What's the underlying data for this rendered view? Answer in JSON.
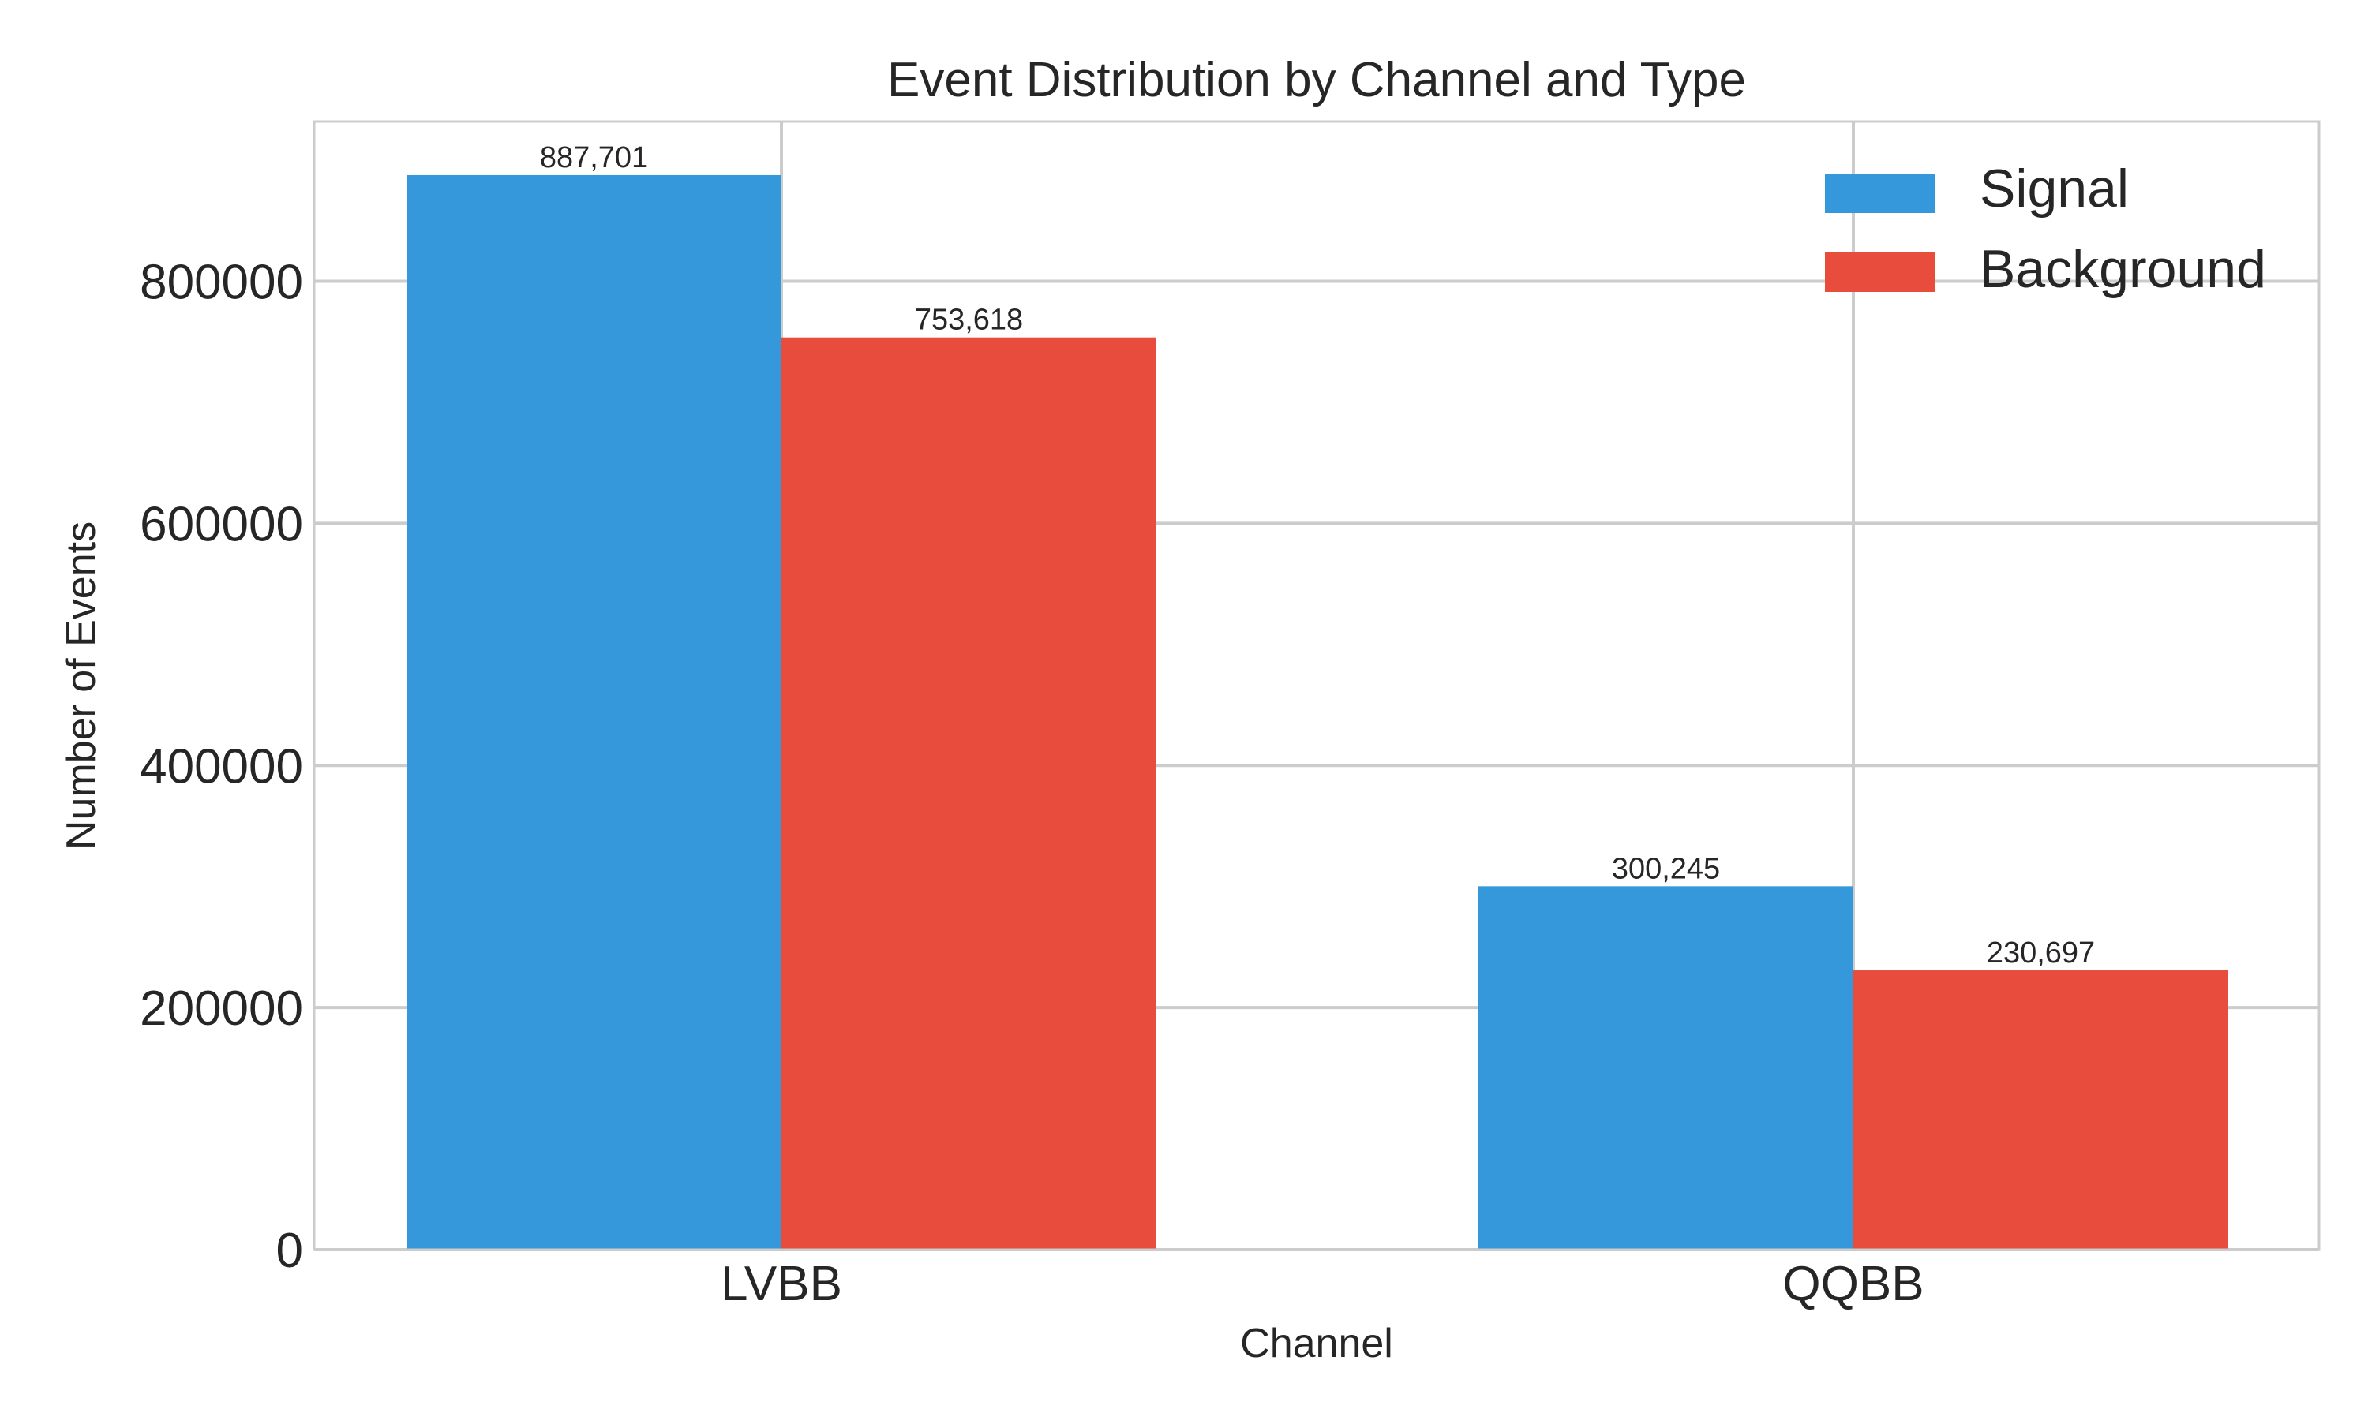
{
  "chart_data": {
    "type": "bar",
    "title": "Event Distribution by Channel and Type",
    "xlabel": "Channel",
    "ylabel": "Number of Events",
    "categories": [
      "LVBB",
      "QQBB"
    ],
    "series": [
      {
        "name": "Signal",
        "color": "#3498db",
        "values": [
          887701,
          300245
        ],
        "labels": [
          "887,701",
          "300,245"
        ]
      },
      {
        "name": "Background",
        "color": "#e74c3c",
        "values": [
          753618,
          230697
        ],
        "labels": [
          "753,618",
          "230,697"
        ]
      }
    ],
    "ylim": [
      0,
      932000
    ],
    "yticks": [
      0,
      200000,
      400000,
      600000,
      800000
    ],
    "ytick_labels": [
      "0",
      "200000",
      "400000",
      "600000",
      "800000"
    ],
    "grid": true,
    "legend_position": "top-right"
  }
}
